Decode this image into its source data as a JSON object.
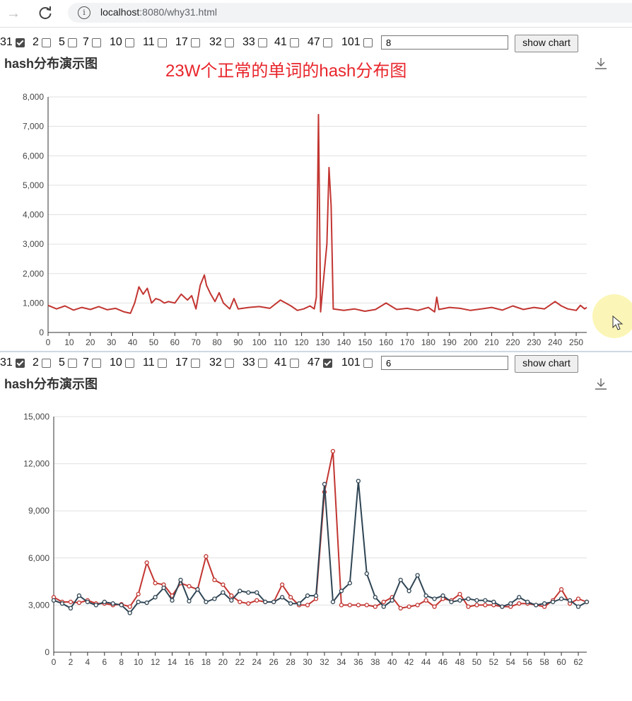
{
  "browser": {
    "url_host": "localhost",
    "url_rest": ":8080/why31.html"
  },
  "panel1": {
    "options": [
      {
        "label": "31",
        "checked": true
      },
      {
        "label": "2",
        "checked": false
      },
      {
        "label": "5",
        "checked": false
      },
      {
        "label": "7",
        "checked": false
      },
      {
        "label": "10",
        "checked": false
      },
      {
        "label": "11",
        "checked": false
      },
      {
        "label": "17",
        "checked": false
      },
      {
        "label": "32",
        "checked": false
      },
      {
        "label": "33",
        "checked": false
      },
      {
        "label": "41",
        "checked": false
      },
      {
        "label": "47",
        "checked": false
      },
      {
        "label": "101",
        "checked": false
      }
    ],
    "input_value": "8",
    "button_label": "show chart",
    "title": "hash分布演示图",
    "caption": "23W个正常的单词的hash分布图"
  },
  "panel2": {
    "options": [
      {
        "label": "31",
        "checked": true
      },
      {
        "label": "2",
        "checked": false
      },
      {
        "label": "5",
        "checked": false
      },
      {
        "label": "7",
        "checked": false
      },
      {
        "label": "10",
        "checked": false
      },
      {
        "label": "11",
        "checked": false
      },
      {
        "label": "17",
        "checked": false
      },
      {
        "label": "32",
        "checked": false
      },
      {
        "label": "33",
        "checked": false
      },
      {
        "label": "41",
        "checked": false
      },
      {
        "label": "47",
        "checked": true
      },
      {
        "label": "101",
        "checked": false
      }
    ],
    "input_value": "6",
    "button_label": "show chart",
    "title": "hash分布演示图"
  },
  "chart_data": [
    {
      "type": "line",
      "title": "hash分布演示图",
      "x_range": [
        0,
        255
      ],
      "x_ticks": [
        0,
        10,
        20,
        30,
        40,
        50,
        60,
        70,
        80,
        90,
        100,
        110,
        120,
        130,
        140,
        150,
        160,
        170,
        180,
        190,
        200,
        210,
        220,
        230,
        240,
        250
      ],
      "ylim": [
        0,
        8000
      ],
      "y_ticks": [
        "0",
        "1,000",
        "2,000",
        "3,000",
        "4,000",
        "5,000",
        "6,000",
        "7,000",
        "8,000"
      ],
      "grid": true,
      "series": [
        {
          "color": "#c23531",
          "x": [
            0,
            4,
            8,
            12,
            16,
            20,
            24,
            28,
            32,
            36,
            39,
            41,
            43,
            45,
            47,
            49,
            51,
            53,
            55,
            57,
            60,
            63,
            66,
            68,
            70,
            72,
            74,
            75,
            77,
            79,
            81,
            83,
            86,
            88,
            90,
            95,
            100,
            105,
            110,
            115,
            118,
            121,
            124,
            126,
            127,
            128,
            129,
            130,
            132,
            133,
            134,
            135,
            140,
            145,
            150,
            155,
            160,
            165,
            170,
            175,
            180,
            183,
            184,
            185,
            190,
            195,
            200,
            205,
            210,
            215,
            220,
            225,
            230,
            235,
            240,
            243,
            246,
            250,
            252,
            254,
            255
          ],
          "y": [
            920,
            800,
            900,
            760,
            850,
            780,
            880,
            770,
            820,
            700,
            650,
            1000,
            1550,
            1300,
            1500,
            1000,
            1150,
            1100,
            1000,
            1050,
            1000,
            1300,
            1100,
            1250,
            800,
            1600,
            1950,
            1600,
            1300,
            1050,
            1350,
            1000,
            800,
            1150,
            800,
            850,
            880,
            820,
            1100,
            900,
            750,
            800,
            900,
            800,
            1200,
            7400,
            700,
            1500,
            3000,
            5600,
            4300,
            800,
            750,
            800,
            720,
            780,
            1000,
            780,
            820,
            750,
            850,
            700,
            1200,
            780,
            850,
            820,
            750,
            800,
            850,
            760,
            900,
            780,
            850,
            800,
            1050,
            900,
            800,
            750,
            920,
            800,
            850
          ]
        }
      ]
    },
    {
      "type": "line",
      "title": "hash分布演示图",
      "x_range": [
        0,
        63
      ],
      "x_ticks": [
        0,
        2,
        4,
        6,
        8,
        10,
        12,
        14,
        16,
        18,
        20,
        22,
        24,
        26,
        28,
        30,
        32,
        34,
        36,
        38,
        40,
        42,
        44,
        46,
        48,
        50,
        52,
        54,
        56,
        58,
        60,
        62
      ],
      "ylim": [
        0,
        15000
      ],
      "y_ticks": [
        "0",
        "3,000",
        "6,000",
        "9,000",
        "12,000",
        "15,000"
      ],
      "grid": true,
      "series": [
        {
          "color": "#c23531",
          "x": [
            0,
            1,
            2,
            3,
            4,
            5,
            6,
            7,
            8,
            9,
            10,
            11,
            12,
            13,
            14,
            15,
            16,
            17,
            18,
            19,
            20,
            21,
            22,
            23,
            24,
            25,
            26,
            27,
            28,
            29,
            30,
            31,
            32,
            33,
            34,
            35,
            36,
            37,
            38,
            39,
            40,
            41,
            42,
            43,
            44,
            45,
            46,
            47,
            48,
            49,
            50,
            51,
            52,
            53,
            54,
            55,
            56,
            57,
            58,
            59,
            60,
            61,
            62,
            63
          ],
          "y": [
            3500,
            3200,
            3200,
            3150,
            3300,
            3100,
            3100,
            3000,
            3050,
            2900,
            3700,
            5700,
            4400,
            4300,
            3600,
            4400,
            4200,
            4000,
            6100,
            4600,
            4300,
            3600,
            3200,
            3100,
            3300,
            3200,
            3200,
            4300,
            3500,
            3000,
            3000,
            3400,
            10200,
            12800,
            3000,
            3000,
            3000,
            3000,
            2900,
            3200,
            3500,
            2800,
            2900,
            3000,
            3300,
            2900,
            3400,
            3300,
            3700,
            2900,
            3000,
            3000,
            3000,
            2900,
            2900,
            3100,
            3100,
            3000,
            2900,
            3300,
            4000,
            3100,
            3400,
            3200
          ]
        },
        {
          "color": "#2f4554",
          "x": [
            0,
            1,
            2,
            3,
            4,
            5,
            6,
            7,
            8,
            9,
            10,
            11,
            12,
            13,
            14,
            15,
            16,
            17,
            18,
            19,
            20,
            21,
            22,
            23,
            24,
            25,
            26,
            27,
            28,
            29,
            30,
            31,
            32,
            33,
            34,
            35,
            36,
            37,
            38,
            39,
            40,
            41,
            42,
            43,
            44,
            45,
            46,
            47,
            48,
            49,
            50,
            51,
            52,
            53,
            54,
            55,
            56,
            57,
            58,
            59,
            60,
            61,
            62,
            63
          ],
          "y": [
            3300,
            3100,
            2800,
            3600,
            3200,
            3000,
            3200,
            3100,
            3000,
            2500,
            3200,
            3150,
            3500,
            4100,
            3300,
            4600,
            3250,
            4000,
            3200,
            3400,
            3800,
            3300,
            3900,
            3800,
            3800,
            3200,
            3200,
            3500,
            3100,
            3100,
            3600,
            3600,
            10700,
            3200,
            3900,
            4400,
            10900,
            5000,
            3500,
            2900,
            3300,
            4600,
            3900,
            4900,
            3600,
            3400,
            3600,
            3200,
            3300,
            3400,
            3300,
            3300,
            3200,
            2900,
            3100,
            3500,
            3200,
            3000,
            3100,
            3200,
            3400,
            3300,
            2900,
            3200
          ]
        }
      ]
    }
  ]
}
